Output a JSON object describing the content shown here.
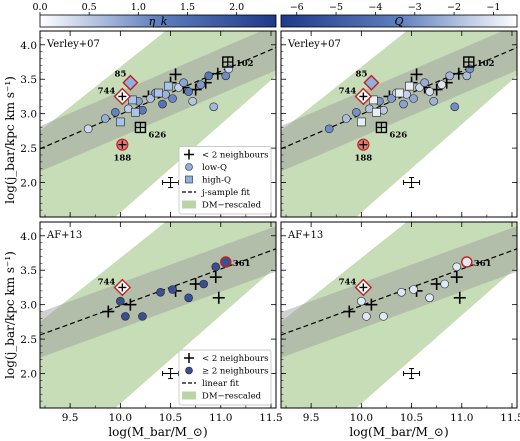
{
  "chart_data": [
    {
      "type": "scatter",
      "panel_label": "Verley+07",
      "colorbar": {
        "label": "η_k",
        "ticks": [
          "0.0",
          "0.5",
          "1.0",
          "1.5",
          "2.0"
        ],
        "range": [
          0.0,
          2.4
        ],
        "cmap": [
          "#ffffff",
          "#5f7fbd",
          "#1e3a8a"
        ]
      },
      "xlim": [
        9.2,
        11.55
      ],
      "ylim": [
        1.5,
        4.2
      ],
      "xticks": [
        "9.5",
        "10.0",
        "10.5",
        "11.0",
        "11.5"
      ],
      "yticks": [
        "2.0",
        "2.5",
        "3.0",
        "3.5",
        "4.0"
      ],
      "ylabel": "log(j_bar/kpc km s⁻¹)",
      "series": [
        {
          "name": "< 2 neighbours",
          "marker": "plus",
          "points": [
            [
              10.28,
              3.25
            ],
            [
              10.5,
              3.45
            ],
            [
              10.63,
              3.38
            ],
            [
              10.75,
              3.35
            ],
            [
              10.85,
              3.45
            ],
            [
              10.97,
              3.58
            ],
            [
              10.55,
              3.57
            ]
          ]
        },
        {
          "name": "low-Q",
          "marker": "circle",
          "points": [
            [
              9.68,
              2.78
            ],
            [
              9.85,
              2.93
            ],
            [
              9.95,
              3.02
            ],
            [
              10.08,
              3.07
            ],
            [
              10.18,
              3.18
            ],
            [
              10.22,
              3.05
            ],
            [
              10.3,
              3.22
            ],
            [
              10.35,
              3.3
            ],
            [
              10.42,
              3.14
            ],
            [
              10.45,
              3.28
            ],
            [
              10.52,
              3.22
            ],
            [
              10.58,
              3.38
            ],
            [
              10.63,
              3.45
            ],
            [
              10.68,
              3.32
            ],
            [
              10.72,
              3.18
            ],
            [
              10.8,
              3.42
            ],
            [
              10.88,
              3.55
            ],
            [
              10.93,
              3.1
            ],
            [
              11.05,
              3.55
            ],
            [
              11.08,
              3.65
            ]
          ]
        },
        {
          "name": "high-Q",
          "marker": "square",
          "points": [
            [
              10.0,
              2.88
            ],
            [
              10.12,
              3.2
            ],
            [
              10.15,
              3.02
            ],
            [
              10.38,
              3.3
            ],
            [
              10.48,
              3.4
            ]
          ]
        },
        {
          "name": "j-sample fit",
          "marker": "line",
          "x": [
            9.2,
            11.55
          ],
          "y": [
            2.49,
            3.96
          ]
        },
        {
          "name": "DM−rescaled",
          "marker": "band"
        }
      ],
      "highlighted": [
        {
          "label": "85",
          "x": 10.1,
          "y": 3.45
        },
        {
          "label": "744",
          "x": 10.02,
          "y": 3.25
        },
        {
          "label": "188",
          "x": 10.02,
          "y": 2.55
        },
        {
          "label": "626",
          "x": 10.2,
          "y": 2.8
        },
        {
          "label": "102",
          "x": 11.07,
          "y": 3.75
        }
      ],
      "legend": {
        "placement": "lower-right",
        "entries": [
          "< 2 neighbours",
          "low-Q",
          "high-Q",
          "j-sample fit",
          "DM−rescaled"
        ]
      }
    },
    {
      "type": "scatter",
      "panel_label": "Verley+07",
      "colorbar": {
        "label": "Q",
        "ticks": [
          "−6",
          "−5",
          "−4",
          "−3",
          "−2",
          "−1"
        ],
        "range": [
          -6.4,
          -0.4
        ],
        "cmap": [
          "#1e3a8a",
          "#5f7fbd",
          "#ffffff"
        ]
      },
      "xlim": [
        9.2,
        11.55
      ],
      "ylim": [
        1.5,
        4.2
      ],
      "xticks": [
        "9.5",
        "10.0",
        "10.5",
        "11.0",
        "11.5"
      ],
      "yticks": [
        "2.0",
        "2.5",
        "3.0",
        "3.5",
        "4.0"
      ],
      "highlighted": [
        {
          "label": "85",
          "x": 10.1,
          "y": 3.45
        },
        {
          "label": "744",
          "x": 10.02,
          "y": 3.25
        },
        {
          "label": "188",
          "x": 10.02,
          "y": 2.55
        },
        {
          "label": "626",
          "x": 10.2,
          "y": 2.8
        },
        {
          "label": "102",
          "x": 11.07,
          "y": 3.75
        }
      ]
    },
    {
      "type": "scatter",
      "panel_label": "AF+13",
      "xlim": [
        9.2,
        11.55
      ],
      "ylim": [
        1.5,
        4.2
      ],
      "xticks": [
        "9.5",
        "10.0",
        "10.5",
        "11.0",
        "11.5"
      ],
      "yticks": [
        "2.0",
        "2.5",
        "3.0",
        "3.5",
        "4.0"
      ],
      "xlabel": "log(M_bar/M_⊙)",
      "ylabel": "log(j_bar/kpc km s⁻¹)",
      "series": [
        {
          "name": "< 2 neighbours",
          "marker": "plus",
          "points": [
            [
              9.88,
              2.9
            ],
            [
              10.1,
              3.0
            ],
            [
              10.55,
              3.2
            ],
            [
              10.75,
              3.3
            ],
            [
              10.95,
              3.4
            ],
            [
              10.98,
              3.1
            ]
          ]
        },
        {
          "name": "≥ 2 neighbours",
          "marker": "circle",
          "points": [
            [
              10.0,
              3.05
            ],
            [
              10.05,
              2.83
            ],
            [
              10.22,
              2.83
            ],
            [
              10.4,
              3.18
            ],
            [
              10.52,
              3.22
            ],
            [
              10.68,
              3.1
            ],
            [
              10.83,
              3.3
            ],
            [
              10.95,
              3.55
            ]
          ]
        },
        {
          "name": "linear fit",
          "marker": "line",
          "x": [
            9.2,
            11.55
          ],
          "y": [
            2.56,
            3.81
          ]
        },
        {
          "name": "DM−rescaled",
          "marker": "band"
        }
      ],
      "highlighted": [
        {
          "label": "744",
          "x": 10.02,
          "y": 3.25
        },
        {
          "label": "361",
          "x": 11.05,
          "y": 3.62
        }
      ],
      "legend": {
        "placement": "lower-right",
        "entries": [
          "< 2 neighbours",
          "≥ 2 neighbours",
          "linear fit",
          "DM−rescaled"
        ]
      }
    },
    {
      "type": "scatter",
      "panel_label": "AF+13",
      "xlim": [
        9.2,
        11.55
      ],
      "ylim": [
        1.5,
        4.2
      ],
      "xticks": [
        "9.5",
        "10.0",
        "10.5",
        "11.0",
        "11.5"
      ],
      "yticks": [
        "2.0",
        "2.5",
        "3.0",
        "3.5",
        "4.0"
      ],
      "xlabel": "log(M_bar/M_⊙)",
      "highlighted": [
        {
          "label": "744",
          "x": 10.02,
          "y": 3.25
        },
        {
          "label": "361",
          "x": 11.05,
          "y": 3.62
        }
      ]
    }
  ]
}
